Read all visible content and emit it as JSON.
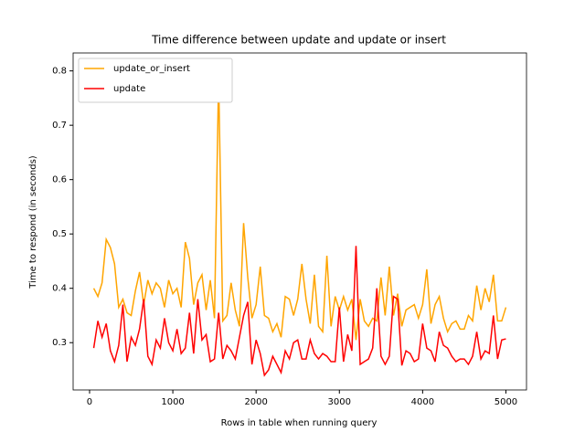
{
  "chart_data": {
    "type": "line",
    "title": "Time difference between update and update or insert",
    "xlabel": "Rows in table when running query",
    "ylabel": "Time to respond (in seconds)",
    "x": [
      50,
      100,
      150,
      200,
      250,
      300,
      350,
      400,
      450,
      500,
      550,
      600,
      650,
      700,
      750,
      800,
      850,
      900,
      950,
      1000,
      1050,
      1100,
      1150,
      1200,
      1250,
      1300,
      1350,
      1400,
      1450,
      1500,
      1550,
      1600,
      1650,
      1700,
      1750,
      1800,
      1850,
      1900,
      1950,
      2000,
      2050,
      2100,
      2150,
      2200,
      2250,
      2300,
      2350,
      2400,
      2450,
      2500,
      2550,
      2600,
      2650,
      2700,
      2750,
      2800,
      2850,
      2900,
      2950,
      3000,
      3050,
      3100,
      3150,
      3200,
      3250,
      3300,
      3350,
      3400,
      3450,
      3500,
      3550,
      3600,
      3650,
      3700,
      3750,
      3800,
      3850,
      3900,
      3950,
      4000,
      4050,
      4100,
      4150,
      4200,
      4250,
      4300,
      4350,
      4400,
      4450,
      4500,
      4550,
      4600,
      4650,
      4700,
      4750,
      4800,
      4850,
      4900,
      4950,
      5000
    ],
    "series": [
      {
        "name": "update_or_insert",
        "color": "#ffa500",
        "values": [
          0.4,
          0.385,
          0.41,
          0.49,
          0.475,
          0.445,
          0.365,
          0.38,
          0.355,
          0.35,
          0.395,
          0.43,
          0.37,
          0.415,
          0.39,
          0.41,
          0.4,
          0.365,
          0.415,
          0.39,
          0.4,
          0.365,
          0.485,
          0.455,
          0.37,
          0.41,
          0.425,
          0.36,
          0.415,
          0.345,
          0.79,
          0.34,
          0.35,
          0.41,
          0.36,
          0.33,
          0.52,
          0.42,
          0.345,
          0.37,
          0.44,
          0.35,
          0.345,
          0.32,
          0.335,
          0.31,
          0.385,
          0.38,
          0.35,
          0.38,
          0.445,
          0.38,
          0.335,
          0.425,
          0.33,
          0.32,
          0.46,
          0.33,
          0.385,
          0.36,
          0.385,
          0.36,
          0.38,
          0.305,
          0.38,
          0.34,
          0.33,
          0.345,
          0.34,
          0.42,
          0.35,
          0.44,
          0.35,
          0.39,
          0.33,
          0.36,
          0.365,
          0.37,
          0.345,
          0.37,
          0.435,
          0.335,
          0.37,
          0.385,
          0.345,
          0.32,
          0.335,
          0.34,
          0.325,
          0.325,
          0.35,
          0.34,
          0.405,
          0.36,
          0.4,
          0.375,
          0.425,
          0.34,
          0.34,
          0.365
        ]
      },
      {
        "name": "update",
        "color": "#ff0000",
        "values": [
          0.29,
          0.34,
          0.31,
          0.335,
          0.285,
          0.265,
          0.295,
          0.37,
          0.265,
          0.31,
          0.295,
          0.325,
          0.38,
          0.275,
          0.26,
          0.305,
          0.29,
          0.345,
          0.3,
          0.285,
          0.325,
          0.28,
          0.29,
          0.355,
          0.28,
          0.38,
          0.305,
          0.315,
          0.265,
          0.27,
          0.355,
          0.27,
          0.295,
          0.285,
          0.27,
          0.31,
          0.35,
          0.375,
          0.26,
          0.305,
          0.28,
          0.24,
          0.25,
          0.275,
          0.26,
          0.245,
          0.285,
          0.27,
          0.3,
          0.305,
          0.27,
          0.27,
          0.305,
          0.28,
          0.27,
          0.28,
          0.275,
          0.265,
          0.265,
          0.365,
          0.265,
          0.315,
          0.285,
          0.478,
          0.26,
          0.265,
          0.27,
          0.29,
          0.4,
          0.275,
          0.26,
          0.275,
          0.385,
          0.38,
          0.258,
          0.285,
          0.28,
          0.265,
          0.27,
          0.335,
          0.29,
          0.285,
          0.265,
          0.32,
          0.295,
          0.29,
          0.275,
          0.265,
          0.27,
          0.27,
          0.26,
          0.275,
          0.32,
          0.27,
          0.285,
          0.28,
          0.35,
          0.27,
          0.305,
          0.307
        ]
      }
    ],
    "xlim": [
      -197.5,
      5247.5
    ],
    "xticks": [
      0,
      1000,
      2000,
      3000,
      4000,
      5000
    ],
    "ylim": [
      0.213,
      0.833
    ],
    "yticks": [
      0.3,
      0.4,
      0.5,
      0.6,
      0.7,
      0.8
    ],
    "legend": "upper left"
  }
}
